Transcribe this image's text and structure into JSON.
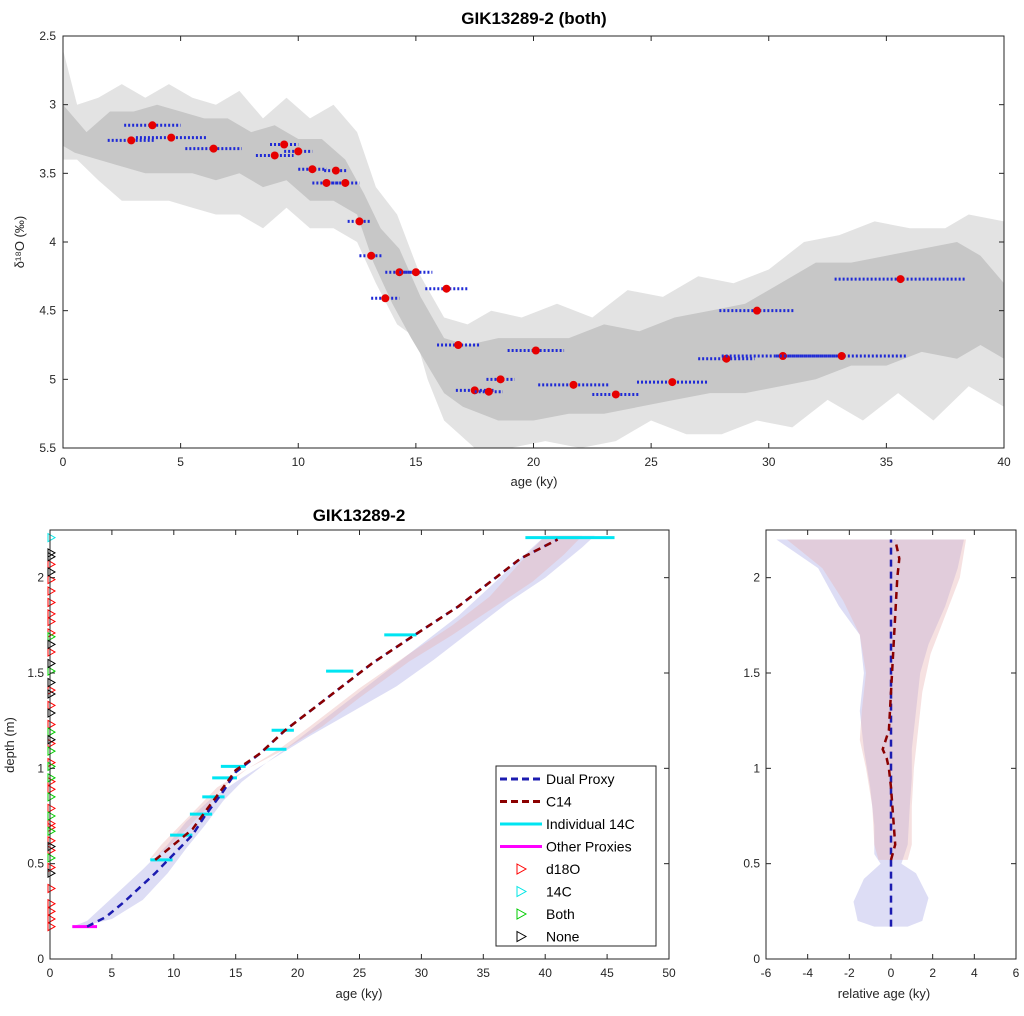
{
  "chart_data": [
    {
      "type": "scatter",
      "title": "GIK13289-2 (both)",
      "xlabel": "age (ky)",
      "ylabel": "δ¹⁸O (‰)",
      "xlim": [
        0,
        40
      ],
      "ylim": [
        2.5,
        5.5
      ],
      "y_reversed": true,
      "xticks": [
        0,
        5,
        10,
        15,
        20,
        25,
        30,
        35,
        40
      ],
      "yticks": [
        2.5,
        3,
        3.5,
        4,
        4.5,
        5,
        5.5
      ],
      "points": [
        {
          "x": 2.9,
          "y": 3.26,
          "xerr": 1.0
        },
        {
          "x": 3.8,
          "y": 3.15,
          "xerr": 1.2
        },
        {
          "x": 4.6,
          "y": 3.24,
          "xerr": 1.5
        },
        {
          "x": 6.4,
          "y": 3.32,
          "xerr": 1.2
        },
        {
          "x": 9.0,
          "y": 3.37,
          "xerr": 0.8
        },
        {
          "x": 9.4,
          "y": 3.29,
          "xerr": 0.6
        },
        {
          "x": 10.0,
          "y": 3.34,
          "xerr": 0.6
        },
        {
          "x": 10.6,
          "y": 3.47,
          "xerr": 0.6
        },
        {
          "x": 11.2,
          "y": 3.57,
          "xerr": 0.6
        },
        {
          "x": 11.6,
          "y": 3.48,
          "xerr": 0.5
        },
        {
          "x": 12.0,
          "y": 3.57,
          "xerr": 0.6
        },
        {
          "x": 12.6,
          "y": 3.85,
          "xerr": 0.5
        },
        {
          "x": 13.1,
          "y": 4.1,
          "xerr": 0.5
        },
        {
          "x": 13.7,
          "y": 4.41,
          "xerr": 0.6
        },
        {
          "x": 14.3,
          "y": 4.22,
          "xerr": 0.6
        },
        {
          "x": 15.0,
          "y": 4.22,
          "xerr": 0.7
        },
        {
          "x": 16.3,
          "y": 4.34,
          "xerr": 0.9
        },
        {
          "x": 16.8,
          "y": 4.75,
          "xerr": 0.9
        },
        {
          "x": 17.5,
          "y": 5.08,
          "xerr": 0.8
        },
        {
          "x": 18.1,
          "y": 5.09,
          "xerr": 0.6
        },
        {
          "x": 18.6,
          "y": 5.0,
          "xerr": 0.6
        },
        {
          "x": 20.1,
          "y": 4.79,
          "xerr": 1.2
        },
        {
          "x": 21.7,
          "y": 5.04,
          "xerr": 1.5
        },
        {
          "x": 23.5,
          "y": 5.11,
          "xerr": 1.0
        },
        {
          "x": 25.9,
          "y": 5.02,
          "xerr": 1.5
        },
        {
          "x": 28.2,
          "y": 4.85,
          "xerr": 1.2
        },
        {
          "x": 29.5,
          "y": 4.5,
          "xerr": 1.6
        },
        {
          "x": 30.6,
          "y": 4.83,
          "xerr": 2.6
        },
        {
          "x": 33.1,
          "y": 4.83,
          "xerr": 2.8
        },
        {
          "x": 35.6,
          "y": 4.27,
          "xerr": 2.8
        }
      ]
    },
    {
      "type": "line",
      "title": "GIK13289-2",
      "xlabel": "age (ky)",
      "ylabel": "depth (m)",
      "xlim": [
        0,
        50
      ],
      "ylim": [
        0,
        2.25
      ],
      "xticks": [
        0,
        5,
        10,
        15,
        20,
        25,
        30,
        35,
        40,
        45,
        50
      ],
      "yticks": [
        0,
        0.5,
        1,
        1.5,
        2
      ],
      "legend": {
        "position": "bottom-right",
        "entries": [
          "Dual Proxy",
          "C14",
          "Individual 14C",
          "Other Proxies",
          "d18O",
          "14C",
          "Both",
          "None"
        ]
      },
      "series": [
        {
          "name": "Dual Proxy",
          "x": [
            3,
            4.5,
            6,
            8.5,
            10,
            11.5,
            12.5,
            14,
            15,
            17,
            19,
            22,
            26,
            29,
            33,
            36,
            38,
            41
          ],
          "y": [
            0.17,
            0.22,
            0.3,
            0.45,
            0.55,
            0.65,
            0.75,
            0.88,
            0.98,
            1.08,
            1.2,
            1.35,
            1.55,
            1.68,
            1.85,
            2.0,
            2.1,
            2.2
          ]
        },
        {
          "name": "C14",
          "x": [
            8.5,
            10,
            11.5,
            12.5,
            14,
            15,
            17,
            19,
            22,
            26,
            29,
            33,
            36,
            38,
            41
          ],
          "y": [
            0.52,
            0.6,
            0.68,
            0.77,
            0.9,
            0.99,
            1.08,
            1.2,
            1.35,
            1.55,
            1.68,
            1.85,
            2.0,
            2.1,
            2.2
          ]
        }
      ],
      "individual_14c": [
        {
          "x": 9.0,
          "y": 0.52,
          "xerr": 0.9
        },
        {
          "x": 10.6,
          "y": 0.65,
          "xerr": 0.9
        },
        {
          "x": 12.2,
          "y": 0.76,
          "xerr": 0.9
        },
        {
          "x": 13.2,
          "y": 0.85,
          "xerr": 0.9
        },
        {
          "x": 14.1,
          "y": 0.95,
          "xerr": 1.0
        },
        {
          "x": 14.8,
          "y": 1.01,
          "xerr": 1.0
        },
        {
          "x": 18.2,
          "y": 1.1,
          "xerr": 0.9
        },
        {
          "x": 18.8,
          "y": 1.2,
          "xerr": 0.9
        },
        {
          "x": 23.4,
          "y": 1.51,
          "xerr": 1.1
        },
        {
          "x": 28.3,
          "y": 1.7,
          "xerr": 1.3
        },
        {
          "x": 42.0,
          "y": 2.21,
          "xerr": 3.6
        }
      ],
      "other_proxies": [
        {
          "x": 2.8,
          "y": 0.17,
          "xerr": 1.0
        }
      ],
      "markers": {
        "d18O": [
          0.17,
          0.21,
          0.25,
          0.29,
          0.37,
          0.48,
          0.57,
          0.62,
          0.69,
          0.71,
          0.79,
          0.89,
          0.93,
          1.03,
          1.13,
          1.23,
          1.33,
          1.41,
          1.61,
          1.71,
          1.77,
          1.81,
          1.87,
          1.93,
          1.99,
          2.07
        ],
        "14C": [
          2.21
        ],
        "Both": [
          0.53,
          0.67,
          0.75,
          0.85,
          0.95,
          1.01,
          1.09,
          1.19,
          1.51,
          1.69
        ],
        "None": [
          0.45,
          0.59,
          1.15,
          1.29,
          1.39,
          1.45,
          1.55,
          1.65,
          2.03,
          2.11,
          2.13
        ]
      }
    },
    {
      "type": "line",
      "title": "",
      "xlabel": "relative age (ky)",
      "ylabel": "",
      "xlim": [
        -6,
        6
      ],
      "ylim": [
        0,
        2.25
      ],
      "xticks": [
        -6,
        -4,
        -2,
        0,
        2,
        4,
        6
      ],
      "yticks": [
        0,
        0.5,
        1,
        1.5,
        2
      ],
      "series": [
        {
          "name": "Dual Proxy",
          "x": [
            0,
            0,
            0
          ],
          "y": [
            0.17,
            1.2,
            2.2
          ]
        },
        {
          "name": "C14",
          "x": [
            0,
            0.2,
            0.1,
            0,
            -0.1,
            -0.2,
            -0.4,
            -0.1,
            0,
            0.1,
            0.2,
            0.3,
            0.4,
            0.2
          ],
          "y": [
            0.52,
            0.6,
            0.75,
            0.9,
            1.0,
            1.05,
            1.1,
            1.2,
            1.4,
            1.6,
            1.8,
            2.0,
            2.1,
            2.2
          ]
        }
      ]
    }
  ],
  "colors": {
    "band_outer": "#e3e3e3",
    "band_inner": "#c7c7c7",
    "errorbar": "#1f2ad6",
    "point": "#e60000",
    "dual_proxy": "#1c1cb0",
    "c14": "#8b0000",
    "individual_14c": "#00e5f2",
    "other_proxies": "#ff00ff",
    "marker_d18O": "#ff0000",
    "marker_14C": "#00e5e5",
    "marker_both": "#00cc00",
    "marker_none": "#000000"
  }
}
